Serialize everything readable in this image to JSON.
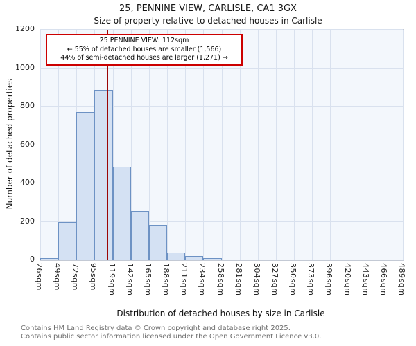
{
  "title": "25, PENNINE VIEW, CARLISLE, CA1 3GX",
  "subtitle": "Size of property relative to detached houses in Carlisle",
  "annotation": {
    "line1": "25 PENNINE VIEW: 112sqm",
    "line2": "← 55% of detached houses are smaller (1,566)",
    "line3": "44% of semi-detached houses are larger (1,271) →"
  },
  "footer": {
    "line1": "Contains HM Land Registry data © Crown copyright and database right 2025.",
    "line2": "Contains public sector information licensed under the Open Government Licence v3.0."
  },
  "chart_data": {
    "type": "bar",
    "title": "25, PENNINE VIEW, CARLISLE, CA1 3GX",
    "subtitle": "Size of property relative to detached houses in Carlisle",
    "xlabel": "Distribution of detached houses by size in Carlisle",
    "ylabel": "Number of detached properties",
    "bin_edges": [
      26,
      49,
      72,
      95,
      119,
      142,
      165,
      188,
      211,
      234,
      258,
      281,
      304,
      327,
      350,
      373,
      396,
      420,
      443,
      466,
      489
    ],
    "x_tick_labels": [
      "26sqm",
      "49sqm",
      "72sqm",
      "95sqm",
      "119sqm",
      "142sqm",
      "165sqm",
      "188sqm",
      "211sqm",
      "234sqm",
      "258sqm",
      "281sqm",
      "304sqm",
      "327sqm",
      "350sqm",
      "373sqm",
      "396sqm",
      "420sqm",
      "443sqm",
      "466sqm",
      "489sqm"
    ],
    "counts": [
      10,
      200,
      770,
      885,
      485,
      255,
      185,
      40,
      20,
      10,
      5,
      0,
      0,
      3,
      0,
      0,
      0,
      0,
      0,
      3
    ],
    "ylim": [
      0,
      1200
    ],
    "y_ticks": [
      0,
      200,
      400,
      600,
      800,
      1000,
      1200
    ],
    "marker": {
      "value": 112,
      "color": "#9c0606"
    },
    "grid": true,
    "legend": "none",
    "bar_fill": "#d4e1f3",
    "bar_border": "#6d92c4"
  }
}
